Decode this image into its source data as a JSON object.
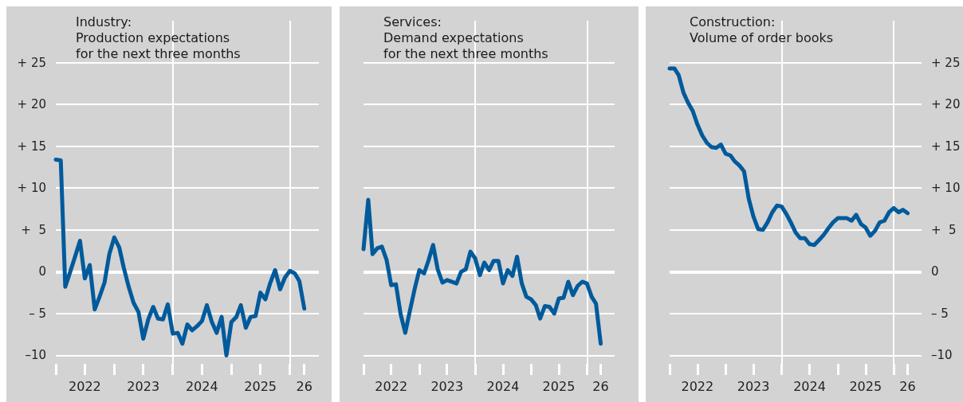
{
  "chart_data": [
    {
      "type": "line",
      "title": "Industry:\nProduction expectations\nfor the next three months",
      "x": [
        "2022-01",
        "2022-02",
        "2022-03",
        "2022-04",
        "2022-05",
        "2022-06",
        "2022-07",
        "2022-08",
        "2022-09",
        "2022-10",
        "2022-11",
        "2022-12",
        "2023-01",
        "2023-02",
        "2023-03",
        "2023-04",
        "2023-05",
        "2023-06",
        "2023-07",
        "2023-08",
        "2023-09",
        "2023-10",
        "2023-11",
        "2023-12",
        "2024-01",
        "2024-02",
        "2024-03",
        "2024-04",
        "2024-05",
        "2024-06",
        "2024-07",
        "2024-08",
        "2024-09",
        "2024-10",
        "2024-11",
        "2024-12",
        "2025-01",
        "2025-02",
        "2025-03",
        "2025-04",
        "2025-05",
        "2025-06",
        "2025-07",
        "2025-08",
        "2025-09",
        "2025-10",
        "2025-11",
        "2025-12",
        "2026-01",
        "2026-02",
        "2026-03",
        "2026-04"
      ],
      "series": [
        {
          "color": "#005a9b",
          "values": [
            13.4,
            13.3,
            -1.8,
            0,
            1.8,
            3.7,
            -0.8,
            0.8,
            -4.5,
            -3,
            -1.3,
            2.1,
            4.1,
            2.9,
            0.5,
            -1.8,
            -3.7,
            -4.8,
            -8,
            -5.7,
            -4.2,
            -5.6,
            -5.7,
            -3.9,
            -7.4,
            -7.3,
            -8.6,
            -6.3,
            -7,
            -6.5,
            -5.9,
            -4,
            -6,
            -7.3,
            -5.4,
            -10,
            -6,
            -5.4,
            -4,
            -6.7,
            -5.4,
            -5.3,
            -2.5,
            -3.3,
            -1.3,
            0.2,
            -2.1,
            -0.7,
            0.1,
            -0.2,
            -1.1,
            -4.4
          ]
        }
      ],
      "xlim": [
        "2022-01",
        "2026-07"
      ],
      "xticks": [
        {
          "value": "2022-01",
          "label": null
        },
        {
          "value": "2022-07",
          "label": "2022"
        },
        {
          "value": "2023-01",
          "label": null
        },
        {
          "value": "2023-07",
          "label": "2023"
        },
        {
          "value": "2024-01",
          "label": null
        },
        {
          "value": "2024-07",
          "label": "2024"
        },
        {
          "value": "2025-01",
          "label": null
        },
        {
          "value": "2025-07",
          "label": "2025"
        },
        {
          "value": "2026-01",
          "label": null
        },
        {
          "value": "2026-04",
          "label": "26"
        }
      ],
      "ylim": [
        -11,
        30
      ],
      "yticks": [
        {
          "value": -10,
          "label": "–10"
        },
        {
          "value": -5,
          "label": "– 5"
        },
        0,
        {
          "value": 5,
          "label": "+  5"
        },
        {
          "value": 10,
          "label": "+ 10"
        },
        {
          "value": 15,
          "label": "+ 15"
        },
        {
          "value": 20,
          "label": "+ 20"
        },
        {
          "value": 25,
          "label": "+ 25"
        }
      ],
      "ref_lines": [
        {
          "axis": "y",
          "value": 0,
          "color": "#ffffff"
        },
        {
          "axis": "x",
          "value": "2024-01",
          "color": "#ffffff"
        },
        {
          "axis": "x",
          "value": "2026-01",
          "color": "#ffffff"
        }
      ],
      "grid": "y",
      "marker": "none",
      "line_style": "solid"
    },
    {
      "type": "line",
      "title": "Services:\nDemand expectations\nfor the next three months",
      "x": [
        "2022-01",
        "2022-02",
        "2022-03",
        "2022-04",
        "2022-05",
        "2022-06",
        "2022-07",
        "2022-08",
        "2022-09",
        "2022-10",
        "2022-11",
        "2022-12",
        "2023-01",
        "2023-02",
        "2023-03",
        "2023-04",
        "2023-05",
        "2023-06",
        "2023-07",
        "2023-08",
        "2023-09",
        "2023-10",
        "2023-11",
        "2023-12",
        "2024-01",
        "2024-02",
        "2024-03",
        "2024-04",
        "2024-05",
        "2024-06",
        "2024-07",
        "2024-08",
        "2024-09",
        "2024-10",
        "2024-11",
        "2024-12",
        "2025-01",
        "2025-02",
        "2025-03",
        "2025-04",
        "2025-05",
        "2025-06",
        "2025-07",
        "2025-08",
        "2025-09",
        "2025-10",
        "2025-11",
        "2025-12",
        "2026-01",
        "2026-02",
        "2026-03",
        "2026-04"
      ],
      "series": [
        {
          "color": "#005a9b",
          "values": [
            2.7,
            8.6,
            2.1,
            2.8,
            3,
            1.4,
            -1.6,
            -1.5,
            -5.1,
            -7.3,
            -4.6,
            -2.1,
            0.2,
            -0.2,
            1.3,
            3.2,
            0.3,
            -1.3,
            -1,
            -1.2,
            -1.4,
            0,
            0.3,
            2.4,
            1.6,
            -0.4,
            1.1,
            0.2,
            1.3,
            1.3,
            -1.4,
            0.2,
            -0.5,
            1.8,
            -1.4,
            -3,
            -3.3,
            -4,
            -5.6,
            -4.1,
            -4.2,
            -5,
            -3.2,
            -3.1,
            -1.2,
            -2.8,
            -1.7,
            -1.2,
            -1.4,
            -3,
            -3.8,
            -8.6
          ]
        }
      ],
      "xlim": [
        "2022-01",
        "2026-07"
      ],
      "xticks": [
        {
          "value": "2022-01",
          "label": null
        },
        {
          "value": "2022-07",
          "label": "2022"
        },
        {
          "value": "2023-01",
          "label": null
        },
        {
          "value": "2023-07",
          "label": "2023"
        },
        {
          "value": "2024-01",
          "label": null
        },
        {
          "value": "2024-07",
          "label": "2024"
        },
        {
          "value": "2025-01",
          "label": null
        },
        {
          "value": "2025-07",
          "label": "2025"
        },
        {
          "value": "2026-01",
          "label": null
        },
        {
          "value": "2026-04",
          "label": "26"
        }
      ],
      "ylim": [
        -11,
        30
      ],
      "yticks": [
        -10,
        -5,
        0,
        5,
        10,
        15,
        20,
        25
      ],
      "tick_labels": "x",
      "ref_lines": [
        {
          "axis": "y",
          "value": 0,
          "color": "#ffffff"
        },
        {
          "axis": "x",
          "value": "2024-01",
          "color": "#ffffff"
        },
        {
          "axis": "x",
          "value": "2026-01",
          "color": "#ffffff"
        }
      ],
      "grid": "y",
      "marker": "none",
      "line_style": "solid"
    },
    {
      "type": "line",
      "title": "Construction:\nVolume of order books",
      "x": [
        "2022-01",
        "2022-02",
        "2022-03",
        "2022-04",
        "2022-05",
        "2022-06",
        "2022-07",
        "2022-08",
        "2022-09",
        "2022-10",
        "2022-11",
        "2022-12",
        "2023-01",
        "2023-02",
        "2023-03",
        "2023-04",
        "2023-05",
        "2023-06",
        "2023-07",
        "2023-08",
        "2023-09",
        "2023-10",
        "2023-11",
        "2023-12",
        "2024-01",
        "2024-02",
        "2024-03",
        "2024-04",
        "2024-05",
        "2024-06",
        "2024-07",
        "2024-08",
        "2024-09",
        "2024-10",
        "2024-11",
        "2024-12",
        "2025-01",
        "2025-02",
        "2025-03",
        "2025-04",
        "2025-05",
        "2025-06",
        "2025-07",
        "2025-08",
        "2025-09",
        "2025-10",
        "2025-11",
        "2025-12",
        "2026-01",
        "2026-02",
        "2026-03",
        "2026-04"
      ],
      "series": [
        {
          "color": "#005a9b",
          "axis": "y2",
          "values": [
            24.3,
            24.3,
            23.5,
            21.4,
            20.2,
            19.2,
            17.6,
            16.3,
            15.4,
            14.9,
            14.8,
            15.2,
            14.1,
            13.9,
            13.2,
            12.7,
            12,
            8.7,
            6.6,
            5.1,
            5,
            5.9,
            7.1,
            7.9,
            7.8,
            6.9,
            5.9,
            4.7,
            4,
            4,
            3.3,
            3.2,
            3.8,
            4.4,
            5.2,
            5.9,
            6.4,
            6.4,
            6.4,
            6.1,
            6.8,
            5.7,
            5.3,
            4.3,
            4.9,
            5.9,
            6.1,
            7.1,
            7.6,
            7.1,
            7.4,
            7
          ]
        }
      ],
      "xlim": [
        "2022-01",
        "2026-07"
      ],
      "xticks": [
        {
          "value": "2022-01",
          "label": null
        },
        {
          "value": "2022-07",
          "label": "2022"
        },
        {
          "value": "2023-01",
          "label": null
        },
        {
          "value": "2023-07",
          "label": "2023"
        },
        {
          "value": "2024-01",
          "label": null
        },
        {
          "value": "2024-07",
          "label": "2024"
        },
        {
          "value": "2025-01",
          "label": null
        },
        {
          "value": "2025-07",
          "label": "2025"
        },
        {
          "value": "2026-01",
          "label": null
        },
        {
          "value": "2026-04",
          "label": "26"
        }
      ],
      "y2lim": [
        -11,
        30
      ],
      "y2ticks": [
        {
          "value": -10,
          "label": "–10"
        },
        {
          "value": -5,
          "label": "– 5"
        },
        0,
        {
          "value": 5,
          "label": "+  5"
        },
        {
          "value": 10,
          "label": "+ 10"
        },
        {
          "value": 15,
          "label": "+ 15"
        },
        {
          "value": 20,
          "label": "+ 20"
        },
        {
          "value": 25,
          "label": "+ 25"
        }
      ],
      "ref_lines": [
        {
          "axis": "y2",
          "value": 0,
          "color": "#ffffff"
        },
        {
          "axis": "x",
          "value": "2024-01",
          "color": "#ffffff"
        },
        {
          "axis": "x",
          "value": "2026-01",
          "color": "#ffffff"
        }
      ],
      "grid": "y",
      "marker": "none",
      "line_style": "solid"
    }
  ]
}
